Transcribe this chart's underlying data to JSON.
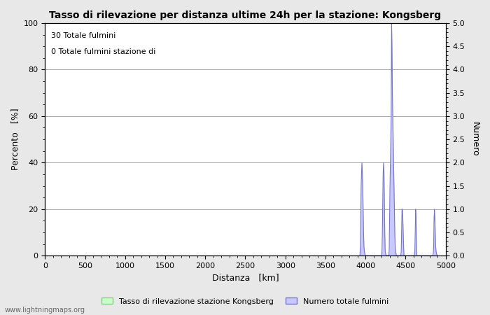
{
  "title": "Tasso di rilevazione per distanza ultime 24h per la stazione: Kongsberg",
  "xlabel": "Distanza   [km]",
  "ylabel_left": "Percento   [%]",
  "ylabel_right": "Numero",
  "annotation_line1": "30 Totale fulmini",
  "annotation_line2": "0 Totale fulmini stazione di",
  "legend_label_green": "Tasso di rilevazione stazione Kongsberg",
  "legend_label_blue": "Numero totale fulmini",
  "watermark": "www.lightningmaps.org",
  "xlim": [
    0,
    5000
  ],
  "ylim_left": [
    0,
    100
  ],
  "ylim_right": [
    0,
    5.0
  ],
  "xticks": [
    0,
    500,
    1000,
    1500,
    2000,
    2500,
    3000,
    3500,
    4000,
    4500,
    5000
  ],
  "yticks_left": [
    0,
    20,
    40,
    60,
    80,
    100
  ],
  "yticks_right": [
    0.0,
    0.5,
    1.0,
    1.5,
    2.0,
    2.5,
    3.0,
    3.5,
    4.0,
    4.5,
    5.0
  ],
  "background_color": "#e8e8e8",
  "plot_bg_color": "#ffffff",
  "grid_color": "#aaaaaa",
  "blue_fill_color": "#c8c8ff",
  "blue_line_color": "#7777bb",
  "green_fill_color": "#c8ffc8",
  "green_line_color": "#88cc88",
  "lightning_x": [
    3930,
    3935,
    3940,
    3945,
    3950,
    3955,
    3960,
    3965,
    3970,
    3975,
    3980,
    3985,
    3990,
    3995,
    4000,
    4005,
    4010,
    4200,
    4205,
    4210,
    4215,
    4220,
    4225,
    4230,
    4235,
    4240,
    4245,
    4250,
    4255,
    4260,
    4265,
    4290,
    4295,
    4300,
    4305,
    4310,
    4315,
    4320,
    4325,
    4330,
    4335,
    4340,
    4345,
    4350,
    4355,
    4360,
    4365,
    4370,
    4375,
    4380,
    4385,
    4440,
    4445,
    4450,
    4455,
    4460,
    4465,
    4470,
    4475,
    4480,
    4610,
    4615,
    4620,
    4625,
    4630,
    4635,
    4640,
    4840,
    4845,
    4850,
    4855,
    4860,
    4865,
    4870,
    4875,
    4880,
    4885,
    4890,
    4895,
    4900
  ],
  "lightning_y": [
    0,
    0.2,
    0.8,
    1.5,
    1.8,
    2.0,
    1.8,
    1.5,
    1.0,
    0.5,
    0.2,
    0.1,
    0.05,
    0.02,
    0.01,
    0,
    0,
    0,
    0.1,
    0.5,
    1.2,
    1.8,
    2.0,
    1.8,
    1.2,
    0.5,
    0.1,
    0.05,
    0.02,
    0.01,
    0,
    0,
    0.1,
    0.8,
    1.5,
    2.0,
    2.5,
    3.0,
    5.0,
    4.5,
    3.5,
    3.0,
    2.5,
    2.0,
    1.5,
    1.0,
    0.5,
    0.2,
    0.1,
    0.05,
    0,
    0,
    0.1,
    0.5,
    1.0,
    1.0,
    0.8,
    0.5,
    0.2,
    0,
    0,
    0.1,
    0.5,
    1.0,
    0.8,
    0.3,
    0,
    0,
    0.05,
    0.2,
    0.8,
    1.0,
    0.8,
    0.5,
    0.2,
    0.1,
    0.05,
    0.02,
    0.01,
    0
  ],
  "figsize": [
    7.0,
    4.5
  ],
  "dpi": 100
}
